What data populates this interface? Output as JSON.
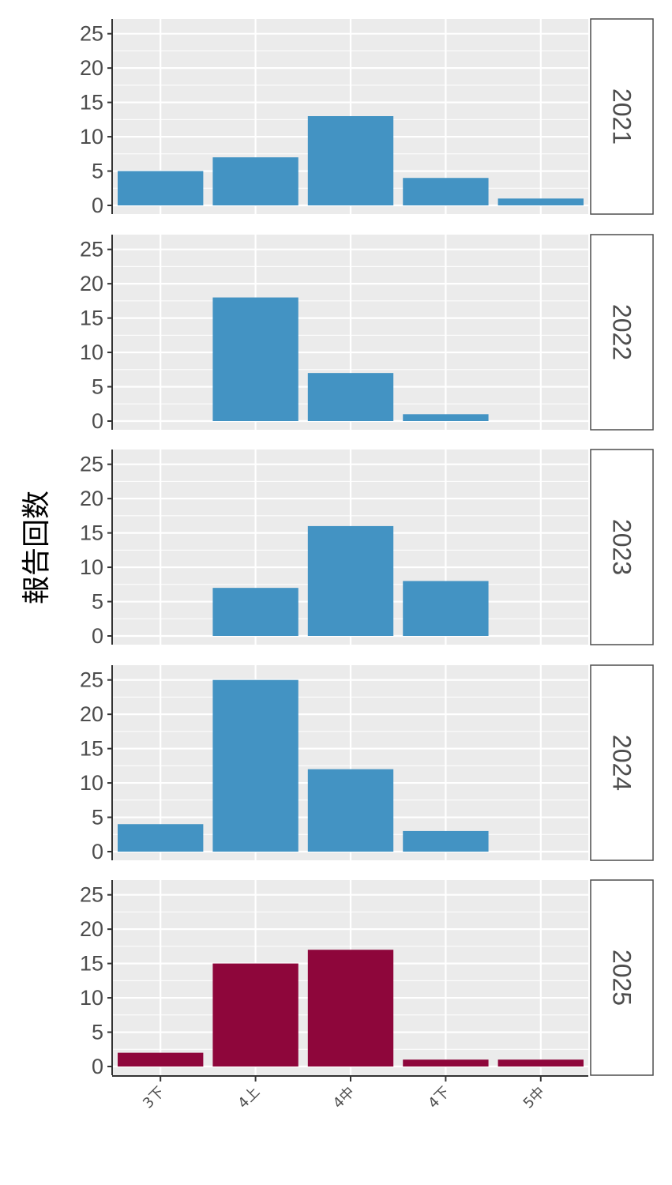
{
  "chart_data": {
    "type": "bar",
    "layout": "faceted-rows",
    "ylabel": "報告回数",
    "xlabel": "",
    "ylim": [
      0,
      26
    ],
    "yticks": [
      0,
      5,
      10,
      15,
      20,
      25
    ],
    "categories": [
      "3下",
      "4上",
      "4中",
      "4下",
      "5中"
    ],
    "grid": true,
    "background": "#ebebeb",
    "facets": [
      {
        "label": "2021",
        "color": "#4393c3",
        "values": [
          5,
          7,
          13,
          4,
          1
        ]
      },
      {
        "label": "2022",
        "color": "#4393c3",
        "values": [
          0,
          18,
          7,
          1,
          0
        ]
      },
      {
        "label": "2023",
        "color": "#4393c3",
        "values": [
          0,
          7,
          16,
          8,
          0
        ]
      },
      {
        "label": "2024",
        "color": "#4393c3",
        "values": [
          4,
          25,
          12,
          3,
          0
        ]
      },
      {
        "label": "2025",
        "color": "#8e063b",
        "values": [
          2,
          15,
          17,
          1,
          1
        ]
      }
    ]
  }
}
